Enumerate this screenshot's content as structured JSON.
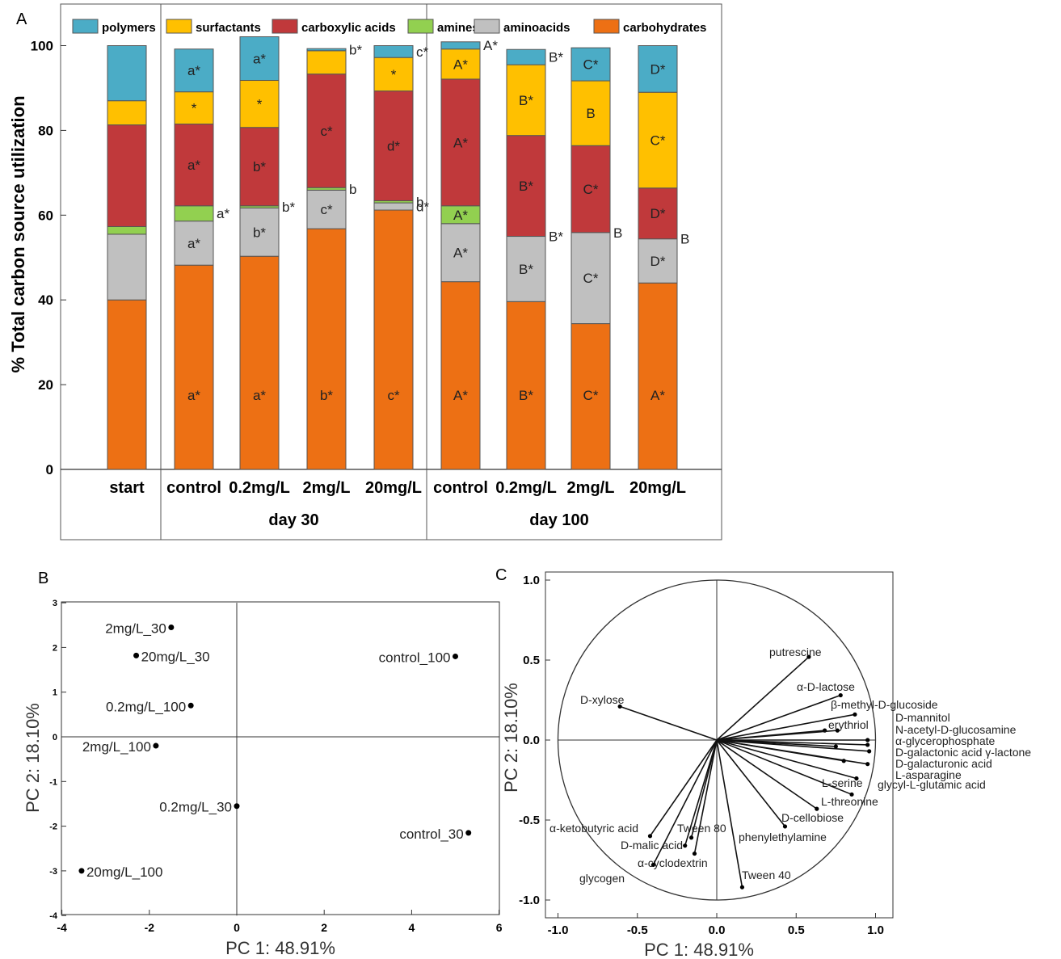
{
  "panels": {
    "a": "A",
    "b": "B",
    "c": "C"
  },
  "colors": {
    "polymers": "#4bacc6",
    "surfactants": "#ffc000",
    "carboxylic_acids": "#c0393b",
    "amines": "#92d050",
    "aminoacids": "#c0c0c0",
    "carbohydrates": "#ed7014"
  },
  "chart_data": [
    {
      "type": "bar",
      "stacked": true,
      "ylabel": "% Total carbon source utilization",
      "ylim": [
        0,
        100
      ],
      "yticks": [
        "0",
        "20",
        "40",
        "60",
        "80",
        "100"
      ],
      "categories": [
        "start",
        "control",
        "0.2mg/L",
        "2mg/L",
        "20mg/L",
        "control",
        "0.2mg/L",
        "2mg/L",
        "20mg/L"
      ],
      "groups": [
        {
          "label": "day 30",
          "from": 1,
          "to": 4
        },
        {
          "label": "day 100",
          "from": 5,
          "to": 8
        }
      ],
      "legend_position": "top",
      "series": [
        {
          "name": "carbohydrates",
          "values": [
            40,
            48.2,
            50.3,
            56.8,
            61.2,
            44.3,
            39.6,
            34.4,
            44
          ]
        },
        {
          "name": "aminoacids",
          "values": [
            15.5,
            10.4,
            11.4,
            9.1,
            1.7,
            13.7,
            15.4,
            21.5,
            10.4
          ]
        },
        {
          "name": "amines",
          "values": [
            1.8,
            3.6,
            0.5,
            0.6,
            0.5,
            4.2,
            0,
            0,
            0
          ]
        },
        {
          "name": "carboxylic acids",
          "values": [
            24,
            19.3,
            18.5,
            26.8,
            25.9,
            29.9,
            23.8,
            20.5,
            12
          ]
        },
        {
          "name": "surfactants",
          "values": [
            5.7,
            7.6,
            11.1,
            5.5,
            7.9,
            7.1,
            16.7,
            15.3,
            22.6
          ]
        },
        {
          "name": "polymers",
          "values": [
            13,
            10.1,
            10.3,
            0.5,
            2.8,
            1.7,
            3.6,
            7.8,
            11
          ]
        }
      ],
      "annotations": [
        {
          "cat": 1,
          "series": "carbohydrates",
          "text": "a*"
        },
        {
          "cat": 1,
          "series": "aminoacids",
          "text": "a*"
        },
        {
          "cat": 1,
          "series": "amines",
          "text": "a*"
        },
        {
          "cat": 1,
          "series": "carboxylic acids",
          "text": "a*"
        },
        {
          "cat": 1,
          "series": "surfactants",
          "text": "*"
        },
        {
          "cat": 1,
          "series": "polymers",
          "text": "a*"
        },
        {
          "cat": 2,
          "series": "carbohydrates",
          "text": "a*"
        },
        {
          "cat": 2,
          "series": "aminoacids",
          "text": "b*"
        },
        {
          "cat": 2,
          "series": "amines",
          "text": "b*"
        },
        {
          "cat": 2,
          "series": "carboxylic acids",
          "text": "b*"
        },
        {
          "cat": 2,
          "series": "surfactants",
          "text": "*"
        },
        {
          "cat": 2,
          "series": "polymers",
          "text": "a*"
        },
        {
          "cat": 3,
          "series": "carbohydrates",
          "text": "b*"
        },
        {
          "cat": 3,
          "series": "aminoacids",
          "text": "c*"
        },
        {
          "cat": 3,
          "series": "amines",
          "text": "b"
        },
        {
          "cat": 3,
          "series": "carboxylic acids",
          "text": "c*"
        },
        {
          "cat": 3,
          "series": "polymers",
          "text": "b*"
        },
        {
          "cat": 4,
          "series": "carbohydrates",
          "text": "c*"
        },
        {
          "cat": 4,
          "series": "aminoacids",
          "text": "d*"
        },
        {
          "cat": 4,
          "series": "amines",
          "text": "b"
        },
        {
          "cat": 4,
          "series": "carboxylic acids",
          "text": "d*"
        },
        {
          "cat": 4,
          "series": "surfactants",
          "text": "*"
        },
        {
          "cat": 4,
          "series": "polymers",
          "text": "c*"
        },
        {
          "cat": 5,
          "series": "carbohydrates",
          "text": "A*"
        },
        {
          "cat": 5,
          "series": "aminoacids",
          "text": "A*"
        },
        {
          "cat": 5,
          "series": "amines",
          "text": "A*"
        },
        {
          "cat": 5,
          "series": "carboxylic acids",
          "text": "A*"
        },
        {
          "cat": 5,
          "series": "surfactants",
          "text": "A*"
        },
        {
          "cat": 5,
          "series": "polymers",
          "text": "A*"
        },
        {
          "cat": 6,
          "series": "carbohydrates",
          "text": "B*"
        },
        {
          "cat": 6,
          "series": "aminoacids",
          "text": "B*"
        },
        {
          "cat": 6,
          "series": "amines",
          "text": "B*"
        },
        {
          "cat": 6,
          "series": "carboxylic acids",
          "text": "B*"
        },
        {
          "cat": 6,
          "series": "surfactants",
          "text": "B*"
        },
        {
          "cat": 6,
          "series": "polymers",
          "text": "B*"
        },
        {
          "cat": 7,
          "series": "carbohydrates",
          "text": "C*"
        },
        {
          "cat": 7,
          "series": "aminoacids",
          "text": "C*"
        },
        {
          "cat": 7,
          "series": "amines",
          "text": "B"
        },
        {
          "cat": 7,
          "series": "carboxylic acids",
          "text": "C*"
        },
        {
          "cat": 7,
          "series": "surfactants",
          "text": "B"
        },
        {
          "cat": 7,
          "series": "polymers",
          "text": "C*"
        },
        {
          "cat": 8,
          "series": "carbohydrates",
          "text": "A*"
        },
        {
          "cat": 8,
          "series": "aminoacids",
          "text": "D*"
        },
        {
          "cat": 8,
          "series": "amines",
          "text": "B"
        },
        {
          "cat": 8,
          "series": "carboxylic acids",
          "text": "D*"
        },
        {
          "cat": 8,
          "series": "surfactants",
          "text": "C*"
        },
        {
          "cat": 8,
          "series": "polymers",
          "text": "D*"
        }
      ]
    },
    {
      "type": "scatter",
      "xlabel": "PC 1: 48.91%",
      "ylabel": "PC 2: 18.10%",
      "xlim": [
        -4,
        6
      ],
      "ylim": [
        -4,
        3
      ],
      "xticks": [
        "-4",
        "-2",
        "0",
        "2",
        "4",
        "6"
      ],
      "yticks": [
        "-4",
        "-3",
        "-2",
        "-1",
        "0",
        "1",
        "2",
        "3"
      ],
      "points": [
        {
          "label": "2mg/L_30",
          "x": -1.5,
          "y": 2.45
        },
        {
          "label": "20mg/L_30",
          "x": -2.3,
          "y": 1.82
        },
        {
          "label": "0.2mg/L_100",
          "x": -1.05,
          "y": 0.7
        },
        {
          "label": "2mg/L_100",
          "x": -1.85,
          "y": -0.2
        },
        {
          "label": "0.2mg/L_30",
          "x": 0,
          "y": -1.55
        },
        {
          "label": "20mg/L_100",
          "x": -3.55,
          "y": -3.0
        },
        {
          "label": "control_100",
          "x": 5.0,
          "y": 1.8
        },
        {
          "label": "control_30",
          "x": 5.3,
          "y": -2.15
        }
      ]
    },
    {
      "type": "scatter",
      "subtype": "loadings",
      "xlabel": "PC 1: 48.91%",
      "ylabel": "PC 2: 18.10%",
      "xlim": [
        -1.1,
        1.1
      ],
      "ylim": [
        -1.1,
        1.1
      ],
      "xticks": [
        "-1.0",
        "-0.5",
        "0.0",
        "0.5",
        "1.0"
      ],
      "yticks": [
        "-1.0",
        "-0.5",
        "0.0",
        "0.5",
        "1.0"
      ],
      "vectors": [
        {
          "label": "putrescine",
          "x": 0.58,
          "y": 0.52
        },
        {
          "label": "α-D-lactose",
          "x": 0.78,
          "y": 0.28
        },
        {
          "label": "β-methyl-D-glucoside",
          "x": 0.87,
          "y": 0.16
        },
        {
          "label": "erythriol",
          "x": 0.68,
          "y": 0.06
        },
        {
          "label": "D-mannitol",
          "x": 0.76,
          "y": 0.06
        },
        {
          "label": "N-acetyl-D-glucosamine",
          "x": 0.95,
          "y": 0.0
        },
        {
          "label": "α-glycerophosphate",
          "x": 0.95,
          "y": -0.03
        },
        {
          "label": "D-galactonic acid γ-lactone",
          "x": 0.96,
          "y": -0.07
        },
        {
          "label": "D-galacturonic acid",
          "x": 0.95,
          "y": -0.15
        },
        {
          "label": "L-asparagine",
          "x": 0.8,
          "y": -0.13
        },
        {
          "label": "L-serine",
          "x": 0.88,
          "y": -0.24
        },
        {
          "label": "glycyl-L-glutamic acid",
          "x": 0.75,
          "y": -0.04
        },
        {
          "label": "L-threonine",
          "x": 0.85,
          "y": -0.34
        },
        {
          "label": "D-cellobiose",
          "x": 0.63,
          "y": -0.43
        },
        {
          "label": "phenylethylamine",
          "x": 0.43,
          "y": -0.54
        },
        {
          "label": "Tween 40",
          "x": 0.16,
          "y": -0.92
        },
        {
          "label": "Tween 80",
          "x": -0.16,
          "y": -0.61
        },
        {
          "label": "α-cyclodextrin",
          "x": -0.14,
          "y": -0.71
        },
        {
          "label": "D-malic acid",
          "x": -0.2,
          "y": -0.66
        },
        {
          "label": "α-ketobutyric acid",
          "x": -0.42,
          "y": -0.6
        },
        {
          "label": "glycogen",
          "x": -0.4,
          "y": -0.78
        },
        {
          "label": "D-xylose",
          "x": -0.61,
          "y": 0.21
        }
      ]
    }
  ]
}
